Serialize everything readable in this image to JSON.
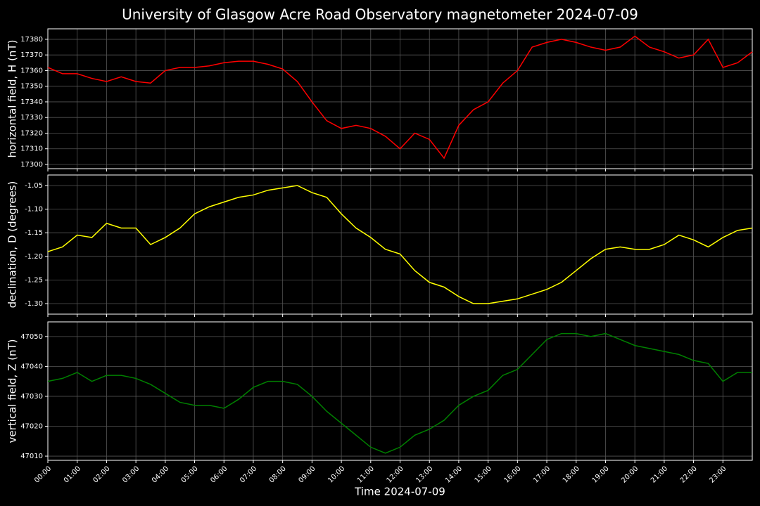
{
  "title": "University of Glasgow Acre Road Observatory magnetometer 2024-07-09",
  "chart_data": [
    {
      "type": "line",
      "ylabel": "horizontal field, H (nT)",
      "color": "#ff0000",
      "grid": true,
      "x": [
        0,
        0.5,
        1,
        1.5,
        2,
        2.5,
        3,
        3.5,
        4,
        4.5,
        5,
        5.5,
        6,
        6.5,
        7,
        7.5,
        8,
        8.5,
        9,
        9.5,
        10,
        10.5,
        11,
        11.5,
        12,
        12.5,
        13,
        13.5,
        14,
        14.5,
        15,
        15.5,
        16,
        16.5,
        17,
        17.5,
        18,
        18.5,
        19,
        19.5,
        20,
        20.5,
        21,
        21.5,
        22,
        22.5,
        23,
        23.5,
        24
      ],
      "values": [
        17362,
        17358,
        17358,
        17355,
        17353,
        17356,
        17353,
        17352,
        17360,
        17362,
        17362,
        17363,
        17365,
        17366,
        17366,
        17364,
        17361,
        17353,
        17340,
        17328,
        17323,
        17325,
        17323,
        17318,
        17310,
        17320,
        17316,
        17304,
        17325,
        17335,
        17340,
        17352,
        17360,
        17375,
        17378,
        17380,
        17378,
        17375,
        17373,
        17375,
        17382,
        17375,
        17372,
        17368,
        17370,
        17380,
        17362,
        17365,
        17372
      ],
      "xlim": [
        0,
        24
      ],
      "xticks": [
        0,
        1,
        2,
        3,
        4,
        5,
        6,
        7,
        8,
        9,
        10,
        11,
        12,
        13,
        14,
        15,
        16,
        17,
        18,
        19,
        20,
        21,
        22,
        23
      ],
      "ylim": [
        17297.3,
        17386.7
      ],
      "yticks": [
        17300,
        17310,
        17320,
        17330,
        17340,
        17350,
        17360,
        17370,
        17380
      ]
    },
    {
      "type": "line",
      "ylabel": "declination, D (degrees)",
      "color": "#ffff00",
      "grid": true,
      "x": [
        0,
        0.5,
        1,
        1.5,
        2,
        2.5,
        3,
        3.5,
        4,
        4.5,
        5,
        5.5,
        6,
        6.5,
        7,
        7.5,
        8,
        8.5,
        9,
        9.5,
        10,
        10.5,
        11,
        11.5,
        12,
        12.5,
        13,
        13.5,
        14,
        14.5,
        15,
        15.5,
        16,
        16.5,
        17,
        17.5,
        18,
        18.5,
        19,
        19.5,
        20,
        20.5,
        21,
        21.5,
        22,
        22.5,
        23,
        23.5,
        24
      ],
      "values": [
        -1.19,
        -1.18,
        -1.155,
        -1.16,
        -1.13,
        -1.14,
        -1.14,
        -1.175,
        -1.16,
        -1.14,
        -1.11,
        -1.095,
        -1.085,
        -1.075,
        -1.07,
        -1.06,
        -1.055,
        -1.05,
        -1.065,
        -1.075,
        -1.11,
        -1.14,
        -1.16,
        -1.185,
        -1.195,
        -1.23,
        -1.255,
        -1.265,
        -1.285,
        -1.3,
        -1.3,
        -1.295,
        -1.29,
        -1.28,
        -1.27,
        -1.255,
        -1.23,
        -1.205,
        -1.185,
        -1.18,
        -1.185,
        -1.185,
        -1.175,
        -1.155,
        -1.165,
        -1.18,
        -1.16,
        -1.145,
        -1.14
      ],
      "xlim": [
        0,
        24
      ],
      "xticks": [
        0,
        1,
        2,
        3,
        4,
        5,
        6,
        7,
        8,
        9,
        10,
        11,
        12,
        13,
        14,
        15,
        16,
        17,
        18,
        19,
        20,
        21,
        22,
        23
      ],
      "ylim": [
        -1.3223,
        -1.0277
      ],
      "yticks": [
        {
          "value": -1.3,
          "label": "-1.30"
        },
        -1.25,
        {
          "value": -1.2,
          "label": "-1.20"
        },
        -1.15,
        {
          "value": -1.1,
          "label": "-1.10"
        },
        -1.05
      ]
    },
    {
      "type": "line",
      "ylabel": "vertical field, Z (nT)",
      "xlabel": "Time 2024-07-09",
      "color": "#008000",
      "grid": true,
      "x": [
        0,
        0.5,
        1,
        1.5,
        2,
        2.5,
        3,
        3.5,
        4,
        4.5,
        5,
        5.5,
        6,
        6.5,
        7,
        7.5,
        8,
        8.5,
        9,
        9.5,
        10,
        10.5,
        11,
        11.5,
        12,
        12.5,
        13,
        13.5,
        14,
        14.5,
        15,
        15.5,
        16,
        16.5,
        17,
        17.5,
        18,
        18.5,
        19,
        19.5,
        20,
        20.5,
        21,
        21.5,
        22,
        22.5,
        23,
        23.5,
        24
      ],
      "values": [
        47035,
        47036,
        47038,
        47035,
        47037,
        47037,
        47036,
        47034,
        47031,
        47028,
        47027,
        47027,
        47026,
        47029,
        47033,
        47035,
        47035,
        47034,
        47030,
        47025,
        47021,
        47017,
        47013,
        47011,
        47013,
        47017,
        47019,
        47022,
        47027,
        47030,
        47032,
        47037,
        47039,
        47044,
        47049,
        47051,
        47051,
        47050,
        47051,
        47049,
        47047,
        47046,
        47045,
        47044,
        47042,
        47041,
        47035,
        47038,
        47038
      ],
      "xlim": [
        0,
        24
      ],
      "xticks": [
        {
          "value": 0,
          "label": "00:00"
        },
        {
          "value": 1,
          "label": "01:00"
        },
        {
          "value": 2,
          "label": "02:00"
        },
        {
          "value": 3,
          "label": "03:00"
        },
        {
          "value": 4,
          "label": "04:00"
        },
        {
          "value": 5,
          "label": "05:00"
        },
        {
          "value": 6,
          "label": "06:00"
        },
        {
          "value": 7,
          "label": "07:00"
        },
        {
          "value": 8,
          "label": "08:00"
        },
        {
          "value": 9,
          "label": "09:00"
        },
        {
          "value": 10,
          "label": "10:00"
        },
        {
          "value": 11,
          "label": "11:00"
        },
        {
          "value": 12,
          "label": "12:00"
        },
        {
          "value": 13,
          "label": "13:00"
        },
        {
          "value": 14,
          "label": "14:00"
        },
        {
          "value": 15,
          "label": "15:00"
        },
        {
          "value": 16,
          "label": "16:00"
        },
        {
          "value": 17,
          "label": "17:00"
        },
        {
          "value": 18,
          "label": "18:00"
        },
        {
          "value": 19,
          "label": "19:00"
        },
        {
          "value": 20,
          "label": "20:00"
        },
        {
          "value": 21,
          "label": "21:00"
        },
        {
          "value": 22,
          "label": "22:00"
        },
        {
          "value": 23,
          "label": "23:00"
        }
      ],
      "ylim": [
        47008.6,
        47054.9
      ],
      "yticks": [
        47010,
        47020,
        47030,
        47040,
        47050
      ]
    }
  ]
}
